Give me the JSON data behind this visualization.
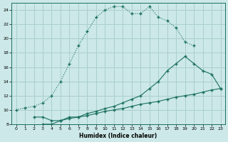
{
  "xlabel": "Humidex (Indice chaleur)",
  "bg_color": "#cce8e8",
  "grid_color": "#aacece",
  "line_color": "#1a7060",
  "xlim": [
    -0.5,
    23.5
  ],
  "ylim": [
    8,
    25
  ],
  "xticks": [
    0,
    1,
    2,
    3,
    4,
    5,
    6,
    7,
    8,
    9,
    10,
    11,
    12,
    13,
    14,
    15,
    16,
    17,
    18,
    19,
    20,
    21,
    22,
    23
  ],
  "yticks": [
    8,
    10,
    12,
    14,
    16,
    18,
    20,
    22,
    24
  ],
  "line1_x": [
    0,
    1,
    2,
    3,
    4,
    5,
    6,
    7,
    8,
    9,
    10,
    11,
    12,
    13,
    14,
    15,
    16,
    17,
    18,
    19,
    20
  ],
  "line1_y": [
    10,
    10.3,
    10.5,
    11.0,
    12.0,
    14.0,
    16.5,
    19.0,
    21.0,
    23.0,
    24.0,
    24.5,
    24.5,
    23.5,
    23.5,
    24.5,
    23.0,
    22.5,
    21.5,
    19.5,
    19.0
  ],
  "line2_x": [
    2,
    3,
    4,
    5,
    6,
    7,
    8,
    9,
    10,
    11,
    12,
    13,
    14,
    15,
    16,
    17,
    18,
    19,
    20,
    21,
    22,
    23
  ],
  "line2_y": [
    9.0,
    9.0,
    8.5,
    8.5,
    9.0,
    9.0,
    9.5,
    9.8,
    10.2,
    10.5,
    11.0,
    11.5,
    12.0,
    13.0,
    14.0,
    15.5,
    16.5,
    17.5,
    16.5,
    15.5,
    15.0,
    13.0
  ],
  "line3_x": [
    3,
    4,
    5,
    6,
    7,
    8,
    9,
    10,
    11,
    12,
    13,
    14,
    15,
    16,
    17,
    18,
    19,
    20,
    21,
    22,
    23
  ],
  "line3_y": [
    8.0,
    8.0,
    8.5,
    8.8,
    9.0,
    9.2,
    9.5,
    9.8,
    10.0,
    10.2,
    10.5,
    10.8,
    11.0,
    11.2,
    11.5,
    11.8,
    12.0,
    12.2,
    12.5,
    12.8,
    13.0
  ]
}
